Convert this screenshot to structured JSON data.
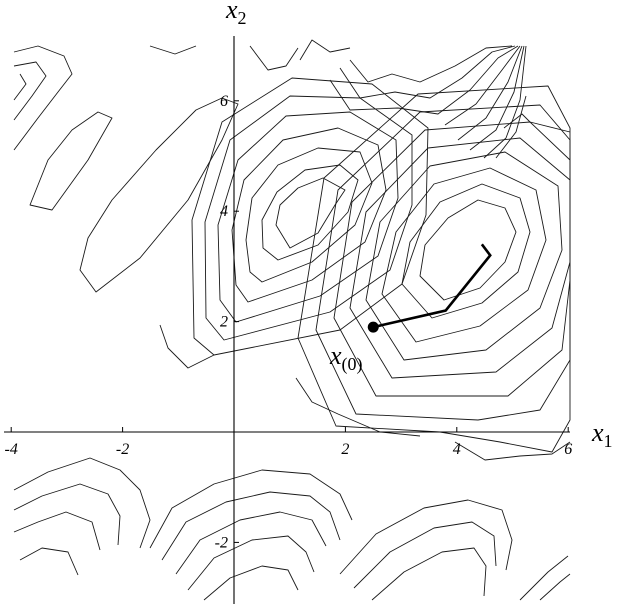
{
  "axes": {
    "x_label": "x",
    "x_sub": "1",
    "y_label": "x",
    "y_sub": "2",
    "x_ticks": [
      {
        "value": -4,
        "label": "-4"
      },
      {
        "value": -2,
        "label": "-2"
      },
      {
        "value": 2,
        "label": "2"
      },
      {
        "value": 4,
        "label": "4"
      },
      {
        "value": 6,
        "label": "6"
      }
    ],
    "y_ticks": [
      {
        "value": -2,
        "label": "-2"
      },
      {
        "value": 2,
        "label": "2"
      },
      {
        "value": 4,
        "label": "4"
      },
      {
        "value": 6,
        "label": "6"
      }
    ]
  },
  "start_point": {
    "label": "x",
    "sub": "(0)",
    "x": 2.5,
    "y": 1.9
  },
  "descent_path": [
    [
      2.5,
      1.9
    ],
    [
      3.8,
      2.2
    ],
    [
      4.6,
      3.2
    ],
    [
      4.45,
      3.4
    ]
  ]
}
